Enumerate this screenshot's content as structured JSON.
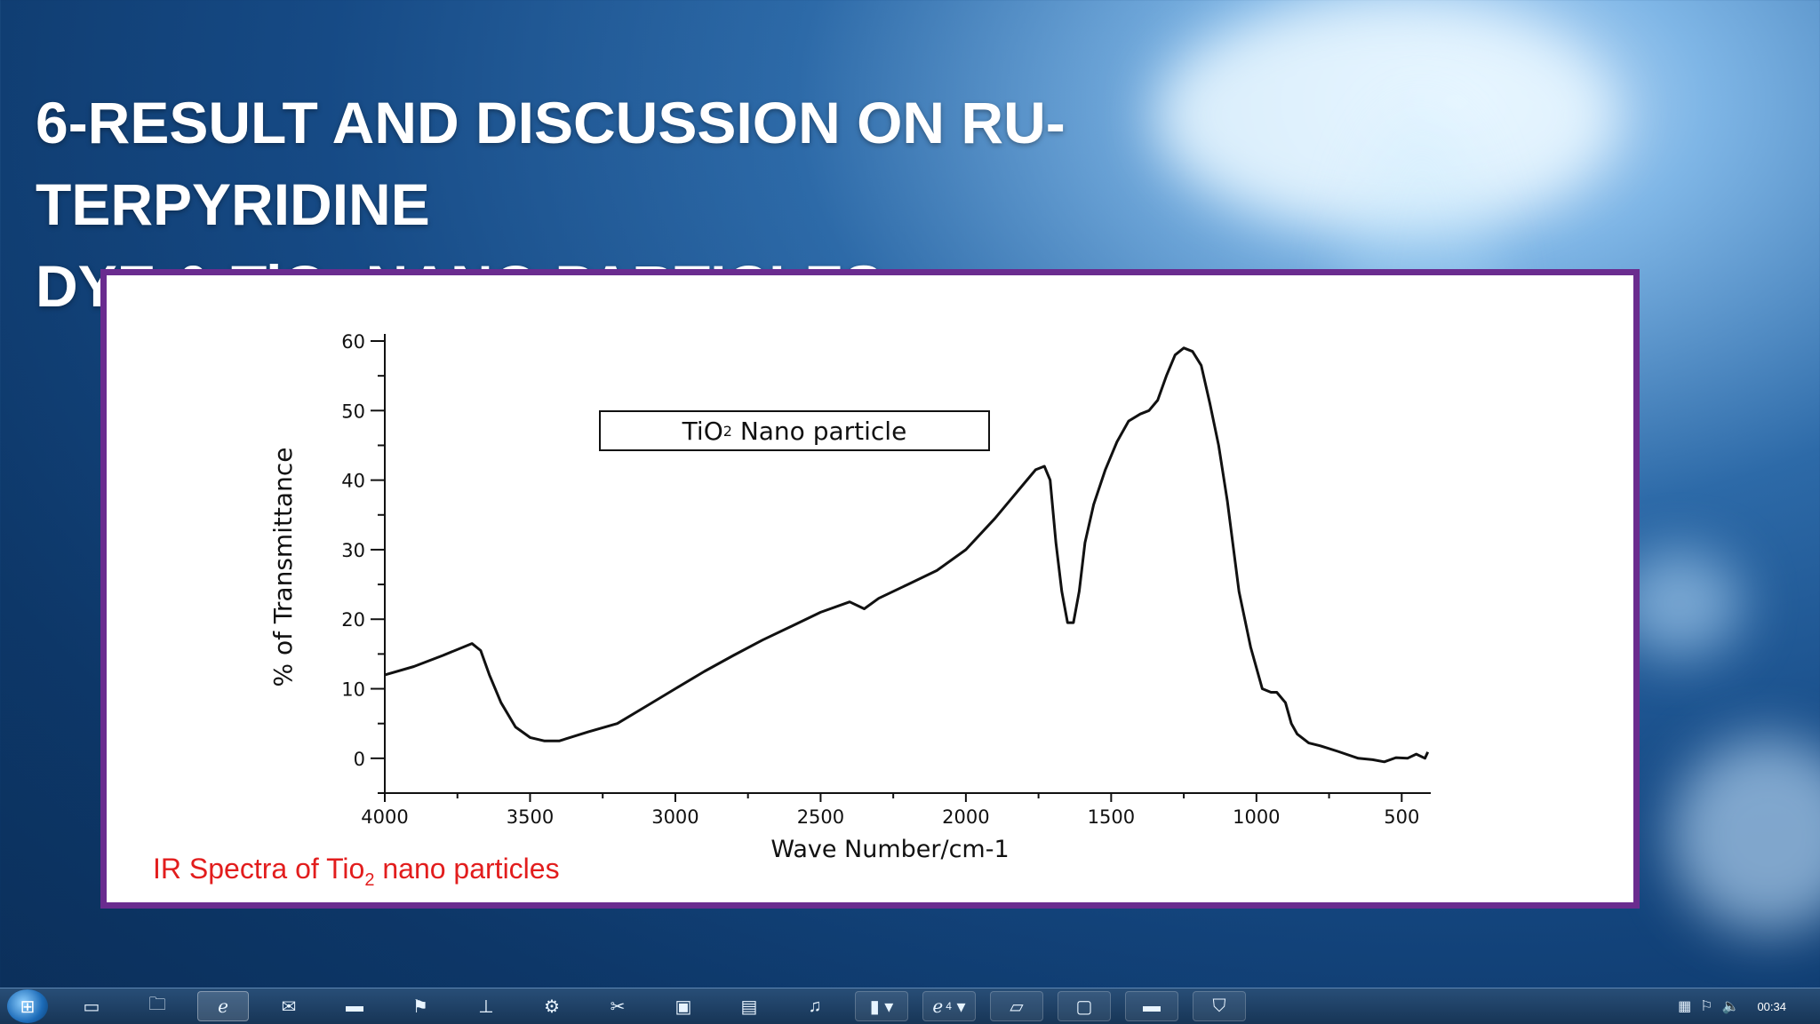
{
  "slide": {
    "title_line1": "6-RESULT AND DISCUSSION ON RU-TERPYRIDINE",
    "title_line2_pre": "DYE & TiO",
    "title_line2_sub": "2",
    "title_line2_post": " NANO PARTICLES"
  },
  "figure": {
    "legend_pre": "TiO",
    "legend_sub": "2",
    "legend_post": " Nano particle",
    "caption_pre": "IR Spectra of Tio",
    "caption_sub": "2",
    "caption_post": " nano particles"
  },
  "chart_data": {
    "type": "line",
    "title": "",
    "xlabel": "Wave Number/cm-1",
    "ylabel": "% of Transmittance",
    "xlim": [
      4000,
      400
    ],
    "ylim": [
      -5,
      60
    ],
    "x_reversed": true,
    "xticks": [
      4000,
      3500,
      3000,
      2500,
      2000,
      1500,
      1000,
      500
    ],
    "yticks": [
      0,
      10,
      20,
      30,
      40,
      50,
      60
    ],
    "grid": false,
    "legend_position": "top-center",
    "series": [
      {
        "name": "TiO2 Nano particle",
        "color": "#111111",
        "x": [
          4000,
          3900,
          3800,
          3700,
          3670,
          3640,
          3600,
          3550,
          3500,
          3450,
          3400,
          3300,
          3200,
          3100,
          3000,
          2900,
          2800,
          2700,
          2600,
          2500,
          2400,
          2350,
          2300,
          2200,
          2100,
          2000,
          1900,
          1800,
          1760,
          1730,
          1710,
          1690,
          1670,
          1650,
          1630,
          1610,
          1590,
          1560,
          1520,
          1480,
          1440,
          1400,
          1370,
          1340,
          1310,
          1280,
          1250,
          1220,
          1190,
          1160,
          1130,
          1100,
          1060,
          1020,
          980,
          950,
          930,
          900,
          880,
          860,
          820,
          780,
          720,
          650,
          600,
          560,
          520,
          480,
          450,
          420,
          410
        ],
        "y": [
          12,
          13.2,
          14.8,
          16.5,
          15.5,
          12,
          8,
          4.5,
          3,
          2.5,
          2.5,
          3.8,
          5,
          7.5,
          10,
          12.5,
          14.8,
          17,
          19,
          21,
          22.5,
          21.5,
          23,
          25,
          27,
          30,
          34.5,
          39.5,
          41.5,
          42,
          40,
          31,
          24,
          19.5,
          19.5,
          24,
          31,
          36.5,
          41.5,
          45.5,
          48.5,
          49.5,
          50,
          51.5,
          55,
          58,
          59,
          58.5,
          56.5,
          51,
          45,
          37,
          24,
          16,
          10,
          9.5,
          9.5,
          8,
          5,
          3.5,
          2.2,
          1.8,
          1,
          0,
          -0.2,
          -0.5,
          0.1,
          0,
          0.6,
          0,
          0.9
        ]
      }
    ]
  },
  "taskbar": {
    "start_icon": "windows-orb",
    "icons": [
      "show-desktop-icon",
      "folder-icon",
      "internet-explorer-icon",
      "mail-icon",
      "command-prompt-icon",
      "network-monitor-icon",
      "network-antenna-icon",
      "settings-icon",
      "tools-icon",
      "computer-icon",
      "chart-icon",
      "music-icon",
      "folder-window",
      "ie-window-group",
      "powerpoint-window",
      "window-thumbnail",
      "cmd-window",
      "app-window"
    ],
    "ie_group_count": "4",
    "clock": "00:34"
  }
}
